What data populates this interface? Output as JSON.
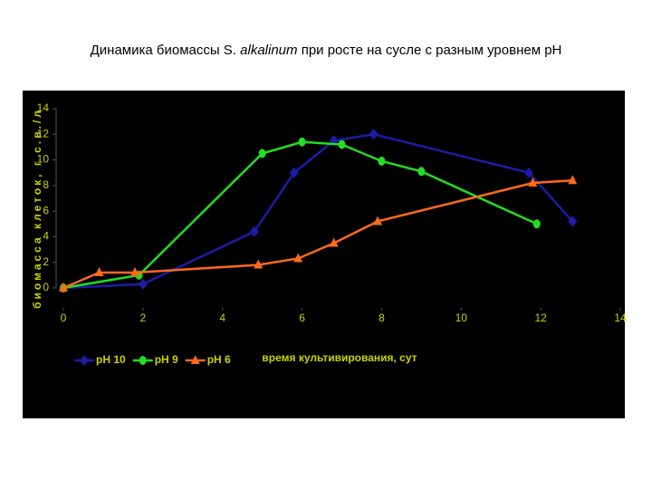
{
  "chart_data": {
    "type": "line",
    "title": {
      "before": "Динамика биомассы S.",
      "italic": "alkalinum",
      "after": "при росте на сусле с разным уровнем pH"
    },
    "x_label": "время культивирования, сут",
    "y_label": "биомасса клеток, г с.в./л",
    "xlim": [
      0,
      14
    ],
    "xticks": [
      0,
      2,
      4,
      6,
      8,
      10,
      12,
      14
    ],
    "ylim": [
      0,
      14
    ],
    "yticks": [
      0,
      2,
      4,
      6,
      8,
      10,
      12,
      14
    ],
    "grid": false,
    "legend": "bottom-left",
    "series": [
      {
        "name": "pH 10",
        "color": "#1c1ca8",
        "marker": "diamond",
        "x": [
          0,
          2,
          4.8,
          5.8,
          6.8,
          7.8,
          11.7,
          12.8
        ],
        "values": [
          0,
          0.3,
          4.4,
          9,
          11.5,
          12,
          9,
          5.2
        ]
      },
      {
        "name": "pH 9",
        "color": "#22dd22",
        "marker": "circle",
        "x": [
          0,
          1.9,
          5,
          6,
          7,
          8,
          9,
          11.9
        ],
        "values": [
          0,
          1,
          10.5,
          11.4,
          11.2,
          9.9,
          9.1,
          5
        ]
      },
      {
        "name": "pH 6",
        "color": "#ff6a1a",
        "marker": "triangle",
        "x": [
          0,
          0.9,
          1.8,
          4.9,
          5.9,
          6.8,
          7.9,
          11.8,
          12.8
        ],
        "values": [
          0,
          1.2,
          1.2,
          1.8,
          2.3,
          3.5,
          5.2,
          8.2,
          8.4
        ]
      }
    ]
  }
}
